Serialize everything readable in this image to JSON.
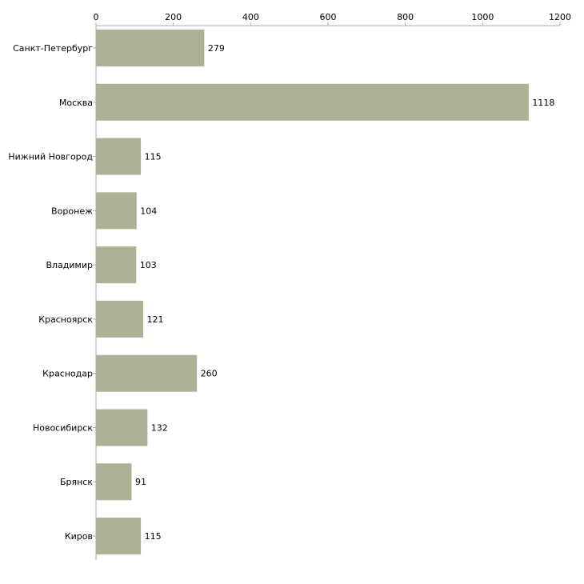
{
  "chart_data": {
    "type": "bar",
    "orientation": "horizontal",
    "title": "",
    "xlabel": "",
    "ylabel": "",
    "xlim": [
      0,
      1200
    ],
    "ticks": [
      0,
      200,
      400,
      600,
      800,
      1000,
      1200
    ],
    "tick_labels": [
      "0",
      "200",
      "400",
      "600",
      "800",
      "1000",
      "1200"
    ],
    "categories": [
      "Санкт-Петербург",
      "Москва",
      "Нижний Новгород",
      "Воронеж",
      "Владимир",
      "Красноярск",
      "Краснодар",
      "Новосибирск",
      "Брянск",
      "Киров"
    ],
    "values": [
      279,
      1118,
      115,
      104,
      103,
      121,
      260,
      132,
      91,
      115
    ],
    "value_labels": [
      "279",
      "1118",
      "115",
      "104",
      "103",
      "121",
      "260",
      "132",
      "91",
      "115"
    ],
    "grid": false,
    "legend": "none",
    "colors": {
      "bar": "#adb195",
      "axis": "#aaaaaa"
    }
  }
}
